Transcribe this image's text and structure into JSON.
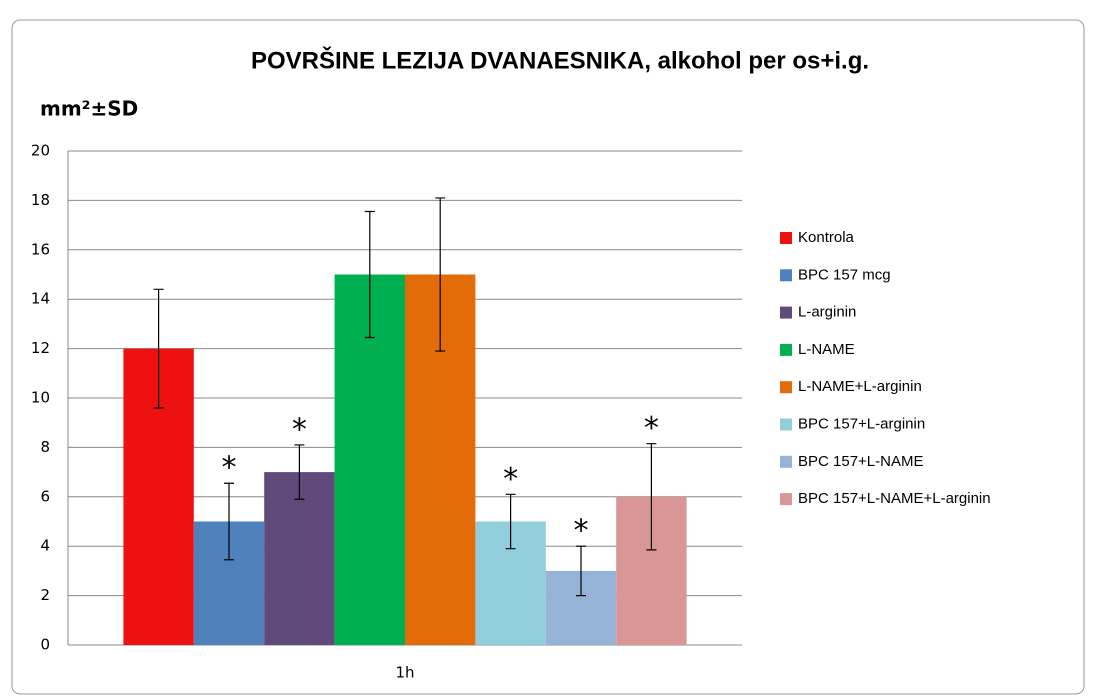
{
  "chart_data": {
    "type": "bar",
    "title": "POVRŠINE LEZIJA DVANAESNIKA, alkohol per os+i.g.",
    "y_label": "mm²±SD",
    "categories": [
      "1h"
    ],
    "ylim": [
      0,
      20
    ],
    "yticks": [
      0,
      2,
      4,
      6,
      8,
      10,
      12,
      14,
      16,
      18,
      20
    ],
    "grid": true,
    "legend": "right",
    "series": [
      {
        "name": "Kontrola",
        "color": "#ee1111",
        "values": [
          12
        ],
        "errors": [
          2.4
        ]
      },
      {
        "name": "BPC 157 mcg",
        "color": "#4f81bd",
        "values": [
          5
        ],
        "errors": [
          1.55
        ],
        "label": "*"
      },
      {
        "name": "L-arginin",
        "color": "#604a7b",
        "values": [
          7
        ],
        "errors": [
          1.1
        ],
        "label": "*"
      },
      {
        "name": "L-NAME",
        "color": "#00b050",
        "values": [
          15
        ],
        "errors": [
          2.55
        ]
      },
      {
        "name": "L-NAME+L-arginin",
        "color": "#e36c09",
        "values": [
          15
        ],
        "errors": [
          3.1
        ]
      },
      {
        "name": "BPC 157+L-arginin",
        "color": "#92cddc",
        "values": [
          5
        ],
        "errors": [
          1.1
        ],
        "label": "*"
      },
      {
        "name": "BPC 157+L-NAME",
        "color": "#95b3d7",
        "values": [
          3
        ],
        "errors": [
          1
        ],
        "label": "*"
      },
      {
        "name": "BPC 157+L-NAME+L-arginin",
        "color": "#d99694",
        "values": [
          6
        ],
        "errors": [
          2.15
        ],
        "label": "*"
      }
    ]
  }
}
